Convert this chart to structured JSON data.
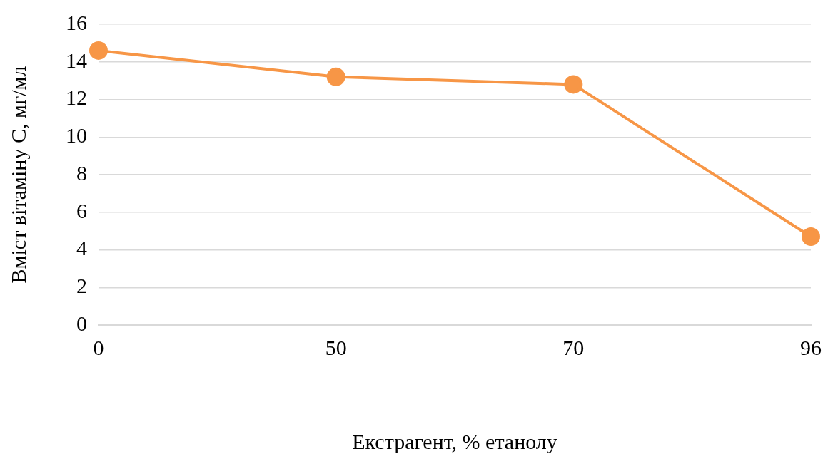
{
  "chart_data": {
    "type": "line",
    "xlabel": "Екстрагент, % етанолу",
    "ylabel": "Вміст вітаміну С, мг/мл",
    "categories": [
      "0",
      "50",
      "70",
      "96"
    ],
    "values": [
      14.6,
      13.2,
      12.8,
      4.7
    ],
    "color": "#f79646",
    "marker": "circle",
    "grid": "y",
    "ylim": [
      0,
      16
    ],
    "yticks": [
      0,
      2,
      4,
      6,
      8,
      10,
      12,
      14,
      16
    ]
  }
}
